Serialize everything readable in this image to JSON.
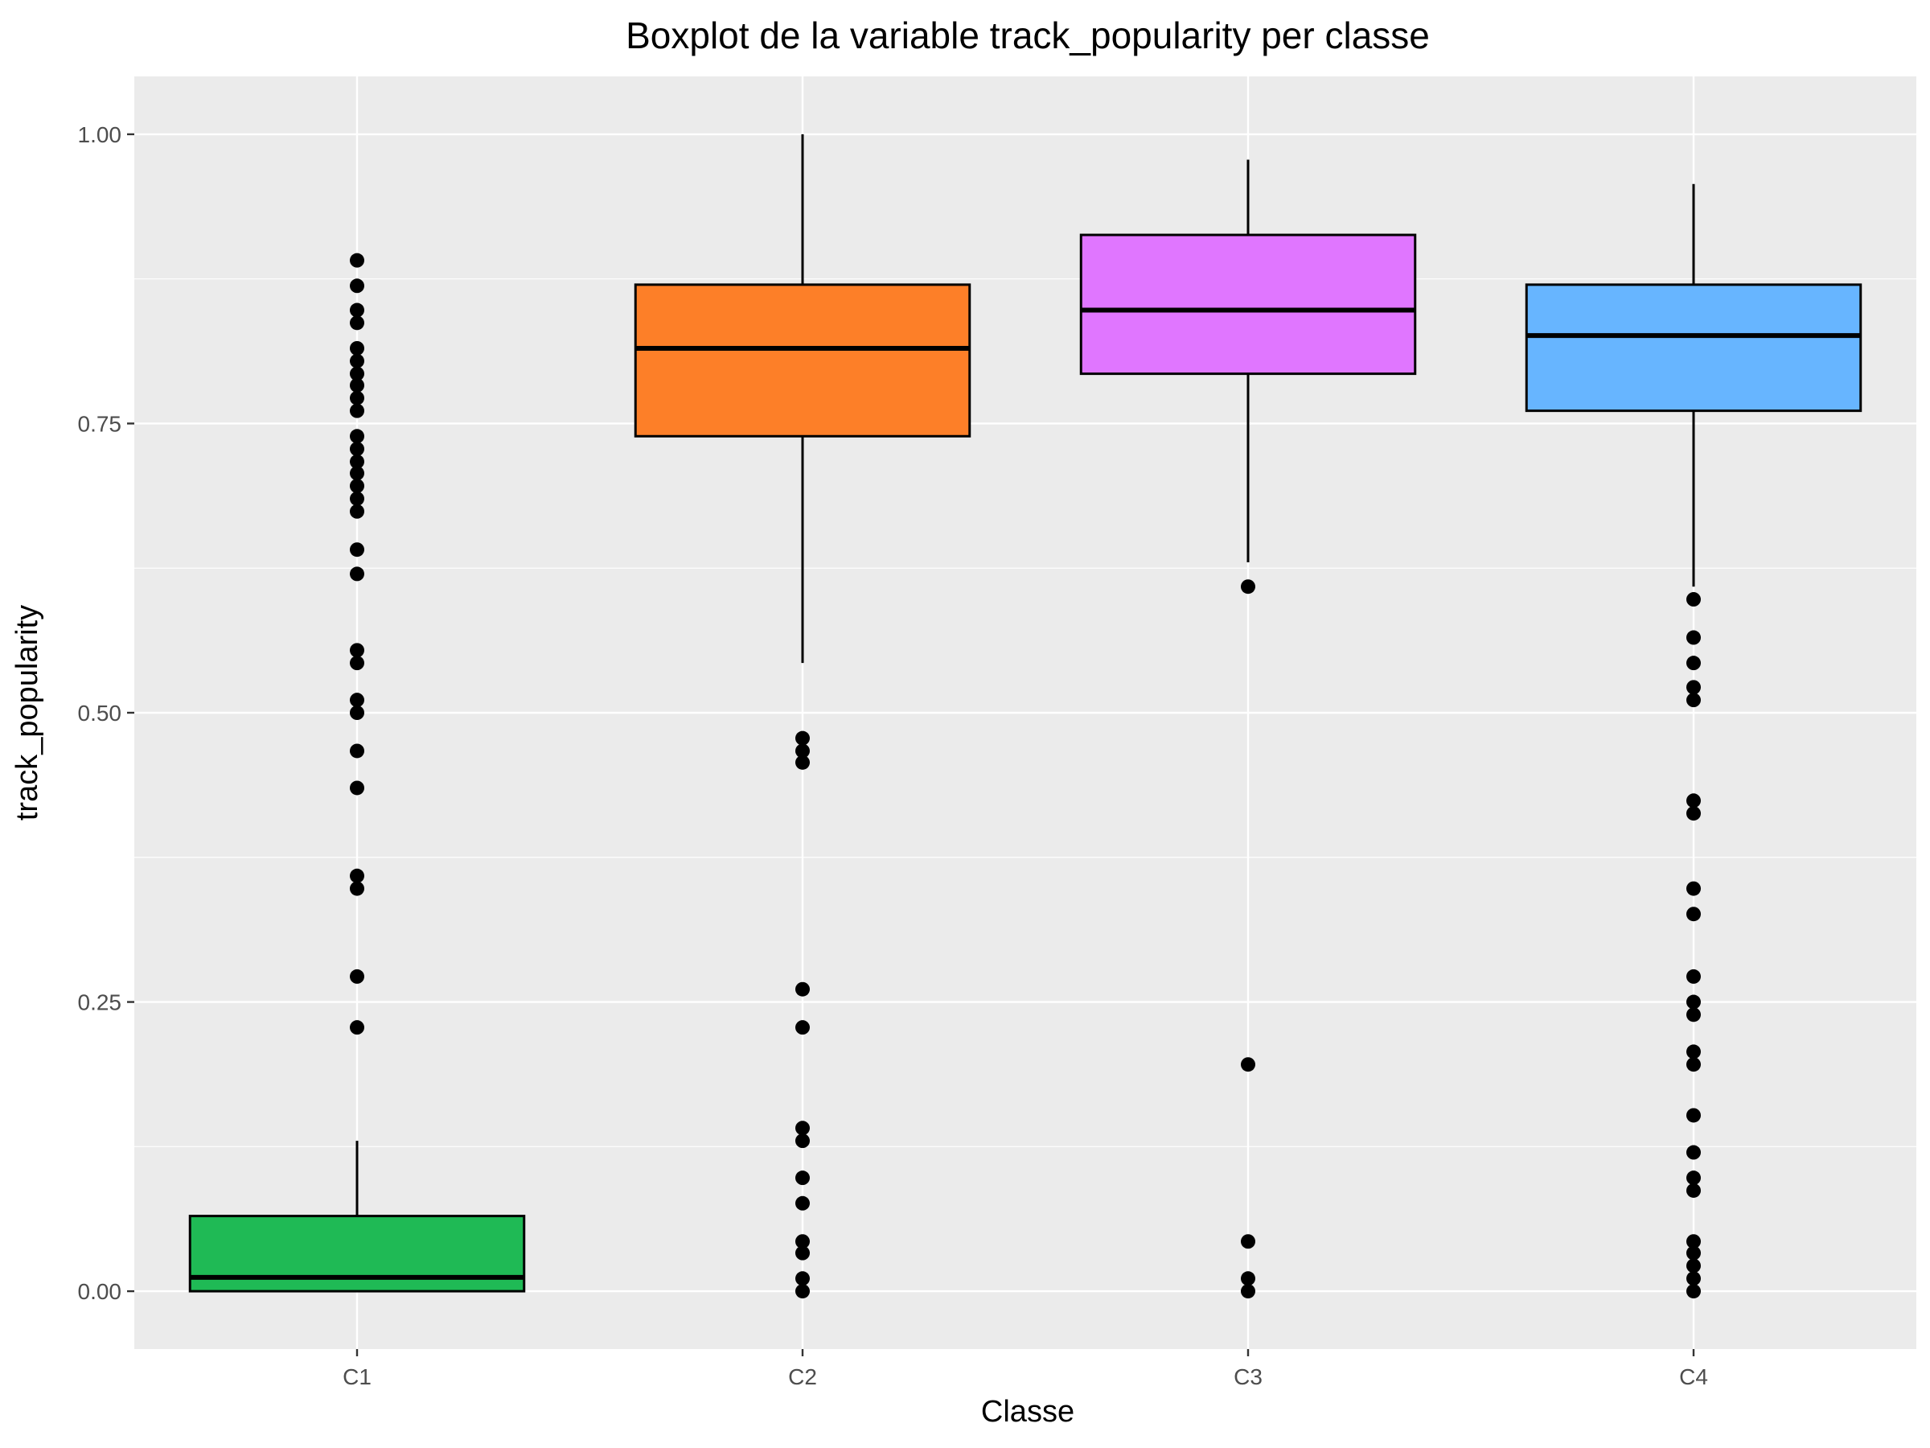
{
  "chart_data": {
    "type": "boxplot",
    "title": "Boxplot de la variable track_popularity per classe",
    "xlabel": "Classe",
    "ylabel": "track_popularity",
    "ylim": [
      -0.05,
      1.05
    ],
    "y_ticks": [
      {
        "value": 0.0,
        "label": "0.00"
      },
      {
        "value": 0.25,
        "label": "0.25"
      },
      {
        "value": 0.5,
        "label": "0.50"
      },
      {
        "value": 0.75,
        "label": "0.75"
      },
      {
        "value": 1.0,
        "label": "1.00"
      }
    ],
    "y_minor_ticks": [
      0.125,
      0.375,
      0.625,
      0.875
    ],
    "grid": true,
    "legend": "none",
    "categories": [
      "C1",
      "C2",
      "C3",
      "C4"
    ],
    "boxes": [
      {
        "category": "C1",
        "color": "#1fba55",
        "q1": 0.0,
        "median": 0.012,
        "q3": 0.065,
        "whisker_low": 0.0,
        "whisker_high": 0.13,
        "outliers": [
          0.891,
          0.869,
          0.848,
          0.837,
          0.815,
          0.804,
          0.793,
          0.783,
          0.772,
          0.761,
          0.739,
          0.728,
          0.717,
          0.707,
          0.696,
          0.685,
          0.674,
          0.641,
          0.62,
          0.554,
          0.543,
          0.511,
          0.5,
          0.467,
          0.435,
          0.359,
          0.348,
          0.272,
          0.228
        ]
      },
      {
        "category": "C2",
        "color": "#fd7f28",
        "q1": 0.739,
        "median": 0.815,
        "q3": 0.87,
        "whisker_low": 0.543,
        "whisker_high": 1.0,
        "outliers": [
          0.478,
          0.467,
          0.457,
          0.261,
          0.228,
          0.141,
          0.13,
          0.098,
          0.076,
          0.043,
          0.033,
          0.011,
          0.0
        ]
      },
      {
        "category": "C3",
        "color": "#e076ff",
        "q1": 0.793,
        "median": 0.848,
        "q3": 0.913,
        "whisker_low": 0.63,
        "whisker_high": 0.978,
        "outliers": [
          0.609,
          0.196,
          0.043,
          0.011,
          0.0
        ]
      },
      {
        "category": "C4",
        "color": "#67b5ff",
        "q1": 0.761,
        "median": 0.826,
        "q3": 0.87,
        "whisker_low": 0.609,
        "whisker_high": 0.957,
        "outliers": [
          0.598,
          0.565,
          0.543,
          0.522,
          0.511,
          0.424,
          0.413,
          0.348,
          0.326,
          0.272,
          0.25,
          0.239,
          0.207,
          0.196,
          0.152,
          0.12,
          0.098,
          0.087,
          0.043,
          0.033,
          0.022,
          0.011,
          0.0
        ]
      }
    ]
  }
}
